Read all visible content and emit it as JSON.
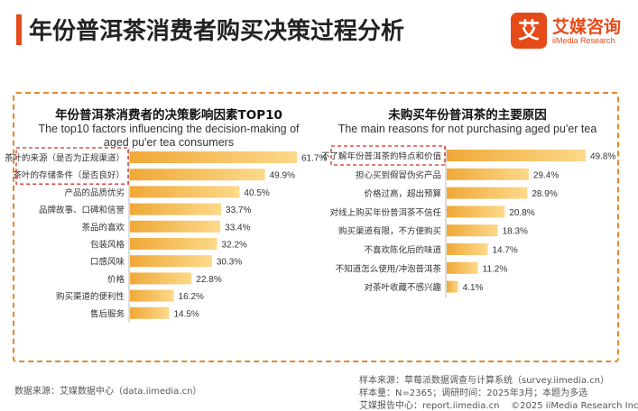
{
  "header": {
    "title": "年份普洱茶消费者购买决策过程分析",
    "logo_mark": "艾",
    "logo_cn": "艾媒咨询",
    "logo_en": "iiMedia Research"
  },
  "left_panel": {
    "title_cn": "年份普洱茶消费者的决策影响因素TOP10",
    "title_en_line1": "The top10 factors influencing the decision-making of",
    "title_en_line2": "aged pu'er tea consumers"
  },
  "right_panel": {
    "title_cn": "未购买年份普洱茶的主要原因",
    "title_en": "The main reasons for not purchasing aged pu'er tea"
  },
  "chart_data": [
    {
      "type": "bar",
      "orientation": "horizontal",
      "title": "年份普洱茶消费者的决策影响因素TOP10",
      "subtitle": "The top10 factors influencing the decision-making of aged pu'er tea consumers",
      "categories": [
        "茶叶的来源（是否为正规渠道）",
        "茶叶的存储条件（是否良好）",
        "产品的品质优劣",
        "品牌故事、口碑和信誉",
        "茶品的喜欢",
        "包装风格",
        "口感风味",
        "价格",
        "购买渠道的便利性",
        "售后服务"
      ],
      "values": [
        61.7,
        49.9,
        40.5,
        33.7,
        33.4,
        32.2,
        30.3,
        22.8,
        16.2,
        14.5
      ],
      "labels": [
        "61.7%",
        "49.9%",
        "40.5%",
        "33.7%",
        "33.4%",
        "32.2%",
        "30.3%",
        "22.8%",
        "16.2%",
        "14.5%"
      ],
      "unit": "%",
      "highlighted": [
        0,
        1
      ],
      "xlim": [
        0,
        65
      ]
    },
    {
      "type": "bar",
      "orientation": "horizontal",
      "title": "未购买年份普洱茶的主要原因",
      "subtitle": "The main reasons for not purchasing aged pu'er tea",
      "categories": [
        "不了解年份普洱茶的特点和价值",
        "担心买到假冒伪劣产品",
        "价格过高，超出预算",
        "对线上购买年份普洱茶不信任",
        "购买渠道有限，不方便购买",
        "不喜欢陈化后的味道",
        "不知道怎么使用/冲泡普洱茶",
        "对茶叶收藏不感兴趣"
      ],
      "values": [
        49.8,
        29.4,
        28.9,
        20.8,
        18.3,
        14.7,
        11.2,
        4.1
      ],
      "labels": [
        "49.8%",
        "29.4%",
        "28.9%",
        "20.8%",
        "18.3%",
        "14.7%",
        "11.2%",
        "4.1%"
      ],
      "unit": "%",
      "highlighted": [
        0
      ],
      "xlim": [
        0,
        52
      ]
    }
  ],
  "footer": {
    "data_source": "数据来源：艾媒数据中心（data.iimedia.cn）",
    "sample_source": "样本来源：草莓派数据调查与计算系统（survey.iimedia.cn）",
    "sample_info": "样本量：N=2365；调研时间：2025年3月；本题为多选",
    "report_site": "艾媒报告中心：report.iimedia.cn",
    "copyright": "©2025  iiMedia Research  Inc"
  },
  "colors": {
    "accent": "#e64a19",
    "bar_start": "#f0a838",
    "bar_end": "#fcd98a",
    "highlight_border": "#d0302a",
    "dashed_border": "#e6862b"
  }
}
